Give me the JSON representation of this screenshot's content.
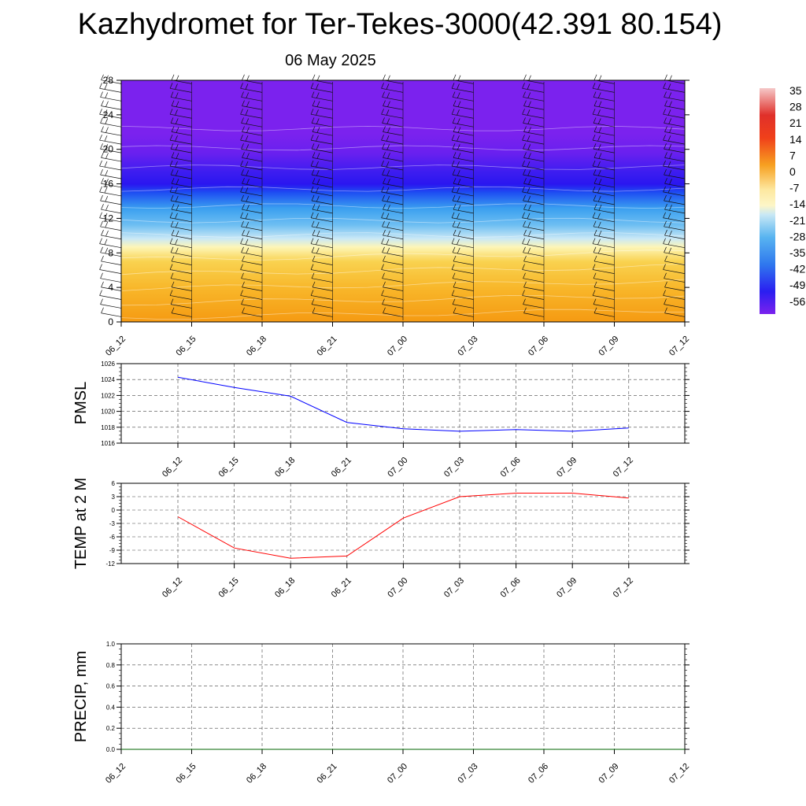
{
  "header": {
    "title": "Kazhydromet for Ter-Tekes-3000(42.391 80.154)",
    "subtitle": "06 May 2025"
  },
  "chart_data": [
    {
      "type": "heatmap",
      "ylim": [
        0,
        28
      ],
      "yticks": [
        "0",
        "4",
        "8",
        "12",
        "16",
        "20",
        "24",
        "28"
      ],
      "x": [
        "06_12",
        "06_15",
        "06_18",
        "06_21",
        "07_00",
        "07_03",
        "07_06",
        "07_09",
        "07_12"
      ],
      "colorbar_labels": [
        "35",
        "28",
        "21",
        "14",
        "7",
        "0",
        "-7",
        "-14",
        "-21",
        "-28",
        "-35",
        "-42",
        "-49",
        "-56"
      ],
      "colors": {
        "warm_bottom": "#f59a12",
        "warm_mid": "#f8c93a",
        "freezing_band": "#fdf6b8",
        "cold_light": "#a3d7f5",
        "cold_mid": "#3a9ff0",
        "cold_deep": "#1e4ef2",
        "cold_core": "#2a16f0",
        "upper": "#7b22ee"
      },
      "wind_barbs": true
    },
    {
      "type": "line",
      "ylabel": "PMSL",
      "ylim": [
        1016,
        1026
      ],
      "yticks": [
        "1016",
        "1018",
        "1020",
        "1022",
        "1024",
        "1026"
      ],
      "x": [
        "06_12",
        "06_15",
        "06_18",
        "06_21",
        "07_00",
        "07_03",
        "07_06",
        "07_09",
        "07_12"
      ],
      "series": [
        {
          "values": [
            1024.3,
            1023.0,
            1021.9,
            1018.6,
            1017.8,
            1017.5,
            1017.7,
            1017.5,
            1017.9
          ],
          "color": "#0000ff"
        }
      ],
      "grid": true
    },
    {
      "type": "line",
      "ylabel": "TEMP at 2 M",
      "ylim": [
        -12,
        6
      ],
      "yticks": [
        "-12",
        "-9",
        "-6",
        "-3",
        "0",
        "3",
        "6"
      ],
      "x": [
        "06_12",
        "06_15",
        "06_18",
        "06_21",
        "07_00",
        "07_03",
        "07_06",
        "07_09",
        "07_12"
      ],
      "series": [
        {
          "values": [
            -1.5,
            -8.5,
            -10.8,
            -10.3,
            -1.8,
            3.0,
            3.8,
            3.8,
            2.7
          ],
          "color": "#ff0000"
        }
      ],
      "grid": true
    },
    {
      "type": "line",
      "ylabel": "PRECIP, mm",
      "ylim": [
        0,
        1.0
      ],
      "yticks": [
        "0.0",
        "0.2",
        "0.4",
        "0.6",
        "0.8",
        "1.0"
      ],
      "x": [
        "06_12",
        "06_15",
        "06_18",
        "06_21",
        "07_00",
        "07_03",
        "07_06",
        "07_09",
        "07_12"
      ],
      "series": [
        {
          "values": [
            0,
            0,
            0,
            0,
            0,
            0,
            0,
            0,
            0
          ],
          "color": "#006400"
        }
      ],
      "grid": true
    }
  ]
}
